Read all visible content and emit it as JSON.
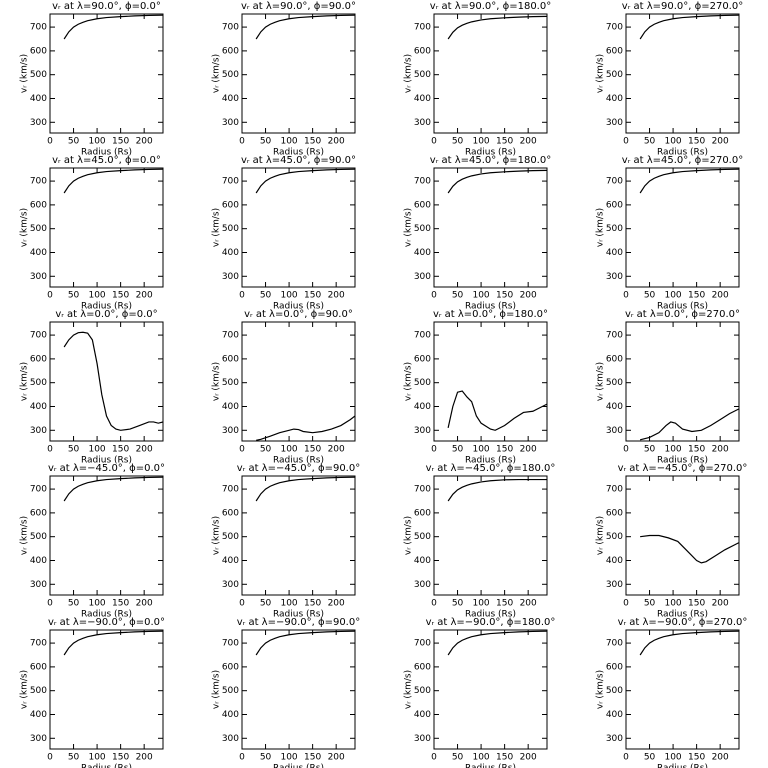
{
  "chart_data": [
    {
      "type": "line",
      "title": "vᵣ at λ=90.0°, ϕ=0.0°",
      "xlabel": "Radius (Rs)",
      "ylabel": "vᵣ (km/s)",
      "x": [
        30,
        40,
        50,
        60,
        70,
        80,
        100,
        120,
        150,
        180,
        210,
        240
      ],
      "series": [
        {
          "color": "#000000",
          "values": [
            650,
            680,
            700,
            712,
            720,
            727,
            735,
            740,
            744,
            747,
            749,
            750
          ]
        }
      ],
      "xlim": [
        0,
        240
      ],
      "ylim": [
        255,
        755
      ],
      "xticks": [
        0,
        50,
        100,
        150,
        200
      ],
      "yticks": [
        300,
        400,
        500,
        600,
        700
      ]
    },
    {
      "type": "line",
      "title": "vᵣ at λ=90.0°, ϕ=90.0°",
      "xlabel": "Radius (Rs)",
      "ylabel": "vᵣ (km/s)",
      "x": [
        30,
        40,
        50,
        60,
        70,
        80,
        100,
        120,
        150,
        180,
        210,
        240
      ],
      "series": [
        {
          "color": "#000000",
          "values": [
            650,
            680,
            700,
            712,
            720,
            727,
            735,
            740,
            744,
            747,
            749,
            750
          ]
        }
      ],
      "xlim": [
        0,
        240
      ],
      "ylim": [
        255,
        755
      ],
      "xticks": [
        0,
        50,
        100,
        150,
        200
      ],
      "yticks": [
        300,
        400,
        500,
        600,
        700
      ]
    },
    {
      "type": "line",
      "title": "vᵣ at λ=90.0°, ϕ=180.0°",
      "xlabel": "Radius (Rs)",
      "ylabel": "vᵣ (km/s)",
      "x": [
        30,
        40,
        50,
        60,
        70,
        80,
        100,
        120,
        150,
        180,
        210,
        240
      ],
      "series": [
        {
          "color": "#000000",
          "values": [
            650,
            678,
            697,
            708,
            716,
            722,
            730,
            735,
            739,
            742,
            744,
            745
          ]
        }
      ],
      "xlim": [
        0,
        240
      ],
      "ylim": [
        255,
        755
      ],
      "xticks": [
        0,
        50,
        100,
        150,
        200
      ],
      "yticks": [
        300,
        400,
        500,
        600,
        700
      ]
    },
    {
      "type": "line",
      "title": "vᵣ at λ=90.0°, ϕ=270.0°",
      "xlabel": "Radius (Rs)",
      "ylabel": "vᵣ (km/s)",
      "x": [
        30,
        40,
        50,
        60,
        70,
        80,
        100,
        120,
        150,
        180,
        210,
        240
      ],
      "series": [
        {
          "color": "#000000",
          "values": [
            650,
            680,
            700,
            712,
            720,
            727,
            735,
            740,
            744,
            747,
            749,
            750
          ]
        }
      ],
      "xlim": [
        0,
        240
      ],
      "ylim": [
        255,
        755
      ],
      "xticks": [
        0,
        50,
        100,
        150,
        200
      ],
      "yticks": [
        300,
        400,
        500,
        600,
        700
      ]
    },
    {
      "type": "line",
      "title": "vᵣ at λ=45.0°, ϕ=0.0°",
      "xlabel": "Radius (Rs)",
      "ylabel": "vᵣ (km/s)",
      "x": [
        30,
        40,
        50,
        60,
        70,
        80,
        100,
        120,
        150,
        180,
        210,
        240
      ],
      "series": [
        {
          "color": "#000000",
          "values": [
            650,
            680,
            700,
            712,
            720,
            727,
            735,
            740,
            744,
            747,
            749,
            750
          ]
        }
      ],
      "xlim": [
        0,
        240
      ],
      "ylim": [
        255,
        755
      ],
      "xticks": [
        0,
        50,
        100,
        150,
        200
      ],
      "yticks": [
        300,
        400,
        500,
        600,
        700
      ]
    },
    {
      "type": "line",
      "title": "vᵣ at λ=45.0°, ϕ=90.0°",
      "xlabel": "Radius (Rs)",
      "ylabel": "vᵣ (km/s)",
      "x": [
        30,
        40,
        50,
        60,
        70,
        80,
        100,
        120,
        150,
        180,
        210,
        240
      ],
      "series": [
        {
          "color": "#000000",
          "values": [
            650,
            680,
            700,
            712,
            720,
            727,
            735,
            740,
            744,
            747,
            749,
            750
          ]
        }
      ],
      "xlim": [
        0,
        240
      ],
      "ylim": [
        255,
        755
      ],
      "xticks": [
        0,
        50,
        100,
        150,
        200
      ],
      "yticks": [
        300,
        400,
        500,
        600,
        700
      ]
    },
    {
      "type": "line",
      "title": "vᵣ at λ=45.0°, ϕ=180.0°",
      "xlabel": "Radius (Rs)",
      "ylabel": "vᵣ (km/s)",
      "x": [
        30,
        40,
        50,
        60,
        70,
        80,
        100,
        120,
        150,
        180,
        210,
        240
      ],
      "series": [
        {
          "color": "#000000",
          "values": [
            650,
            678,
            697,
            708,
            716,
            722,
            730,
            735,
            739,
            742,
            744,
            745
          ]
        }
      ],
      "xlim": [
        0,
        240
      ],
      "ylim": [
        255,
        755
      ],
      "xticks": [
        0,
        50,
        100,
        150,
        200
      ],
      "yticks": [
        300,
        400,
        500,
        600,
        700
      ]
    },
    {
      "type": "line",
      "title": "vᵣ at λ=45.0°, ϕ=270.0°",
      "xlabel": "Radius (Rs)",
      "ylabel": "vᵣ (km/s)",
      "x": [
        30,
        40,
        50,
        60,
        70,
        80,
        100,
        120,
        150,
        180,
        210,
        240
      ],
      "series": [
        {
          "color": "#000000",
          "values": [
            650,
            680,
            700,
            712,
            720,
            727,
            735,
            740,
            744,
            747,
            749,
            750
          ]
        }
      ],
      "xlim": [
        0,
        240
      ],
      "ylim": [
        255,
        755
      ],
      "xticks": [
        0,
        50,
        100,
        150,
        200
      ],
      "yticks": [
        300,
        400,
        500,
        600,
        700
      ]
    },
    {
      "type": "line",
      "title": "vᵣ at λ=0.0°, ϕ=0.0°",
      "xlabel": "Radius (Rs)",
      "ylabel": "vᵣ (km/s)",
      "x": [
        30,
        40,
        50,
        60,
        70,
        80,
        90,
        100,
        110,
        120,
        130,
        140,
        150,
        170,
        190,
        210,
        220,
        230,
        240
      ],
      "series": [
        {
          "color": "#000000",
          "values": [
            650,
            680,
            700,
            710,
            712,
            708,
            680,
            580,
            450,
            360,
            320,
            305,
            300,
            305,
            320,
            335,
            335,
            330,
            335
          ]
        }
      ],
      "xlim": [
        0,
        240
      ],
      "ylim": [
        255,
        755
      ],
      "xticks": [
        0,
        50,
        100,
        150,
        200
      ],
      "yticks": [
        300,
        400,
        500,
        600,
        700
      ]
    },
    {
      "type": "line",
      "title": "vᵣ at λ=0.0°, ϕ=90.0°",
      "xlabel": "Radius (Rs)",
      "ylabel": "vᵣ (km/s)",
      "x": [
        30,
        40,
        60,
        80,
        100,
        110,
        120,
        130,
        150,
        170,
        190,
        210,
        230,
        240
      ],
      "series": [
        {
          "color": "#000000",
          "values": [
            258,
            262,
            275,
            290,
            300,
            305,
            303,
            295,
            290,
            295,
            305,
            320,
            345,
            360
          ]
        }
      ],
      "xlim": [
        0,
        240
      ],
      "ylim": [
        255,
        755
      ],
      "xticks": [
        0,
        50,
        100,
        150,
        200
      ],
      "yticks": [
        300,
        400,
        500,
        600,
        700
      ]
    },
    {
      "type": "line",
      "title": "vᵣ at λ=0.0°, ϕ=180.0°",
      "xlabel": "Radius (Rs)",
      "ylabel": "vᵣ (km/s)",
      "x": [
        30,
        40,
        50,
        60,
        70,
        80,
        90,
        100,
        120,
        130,
        150,
        170,
        190,
        210,
        230,
        240
      ],
      "series": [
        {
          "color": "#000000",
          "values": [
            310,
            400,
            460,
            465,
            440,
            420,
            360,
            330,
            305,
            300,
            320,
            350,
            375,
            380,
            400,
            410
          ]
        }
      ],
      "xlim": [
        0,
        240
      ],
      "ylim": [
        255,
        755
      ],
      "xticks": [
        0,
        50,
        100,
        150,
        200
      ],
      "yticks": [
        300,
        400,
        500,
        600,
        700
      ]
    },
    {
      "type": "line",
      "title": "vᵣ at λ=0.0°, ϕ=270.0°",
      "xlabel": "Radius (Rs)",
      "ylabel": "vᵣ (km/s)",
      "x": [
        30,
        50,
        70,
        85,
        95,
        105,
        120,
        140,
        160,
        180,
        200,
        220,
        240
      ],
      "series": [
        {
          "color": "#000000",
          "values": [
            260,
            270,
            290,
            320,
            335,
            330,
            305,
            295,
            300,
            320,
            345,
            370,
            390
          ]
        }
      ],
      "xlim": [
        0,
        240
      ],
      "ylim": [
        255,
        755
      ],
      "xticks": [
        0,
        50,
        100,
        150,
        200
      ],
      "yticks": [
        300,
        400,
        500,
        600,
        700
      ]
    },
    {
      "type": "line",
      "title": "vᵣ at λ=−45.0°, ϕ=0.0°",
      "xlabel": "Radius (Rs)",
      "ylabel": "vᵣ (km/s)",
      "x": [
        30,
        40,
        50,
        60,
        70,
        80,
        100,
        120,
        150,
        180,
        210,
        240
      ],
      "series": [
        {
          "color": "#000000",
          "values": [
            650,
            680,
            700,
            712,
            720,
            727,
            735,
            740,
            744,
            747,
            749,
            750
          ]
        }
      ],
      "xlim": [
        0,
        240
      ],
      "ylim": [
        255,
        755
      ],
      "xticks": [
        0,
        50,
        100,
        150,
        200
      ],
      "yticks": [
        300,
        400,
        500,
        600,
        700
      ]
    },
    {
      "type": "line",
      "title": "vᵣ at λ=−45.0°, ϕ=90.0°",
      "xlabel": "Radius (Rs)",
      "ylabel": "vᵣ (km/s)",
      "x": [
        30,
        40,
        50,
        60,
        70,
        80,
        100,
        120,
        150,
        180,
        210,
        240
      ],
      "series": [
        {
          "color": "#000000",
          "values": [
            650,
            680,
            700,
            712,
            720,
            727,
            735,
            740,
            744,
            747,
            749,
            750
          ]
        }
      ],
      "xlim": [
        0,
        240
      ],
      "ylim": [
        255,
        755
      ],
      "xticks": [
        0,
        50,
        100,
        150,
        200
      ],
      "yticks": [
        300,
        400,
        500,
        600,
        700
      ]
    },
    {
      "type": "line",
      "title": "vᵣ at λ=−45.0°, ϕ=180.0°",
      "xlabel": "Radius (Rs)",
      "ylabel": "vᵣ (km/s)",
      "x": [
        30,
        40,
        50,
        60,
        70,
        80,
        100,
        120,
        150,
        180,
        210,
        240
      ],
      "series": [
        {
          "color": "#000000",
          "values": [
            650,
            678,
            697,
            708,
            716,
            722,
            730,
            735,
            739,
            740,
            740,
            740
          ]
        }
      ],
      "xlim": [
        0,
        240
      ],
      "ylim": [
        255,
        755
      ],
      "xticks": [
        0,
        50,
        100,
        150,
        200
      ],
      "yticks": [
        300,
        400,
        500,
        600,
        700
      ]
    },
    {
      "type": "line",
      "title": "vᵣ at λ=−45.0°, ϕ=270.0°",
      "xlabel": "Radius (Rs)",
      "ylabel": "vᵣ (km/s)",
      "x": [
        30,
        50,
        70,
        90,
        110,
        130,
        150,
        160,
        170,
        190,
        210,
        240
      ],
      "series": [
        {
          "color": "#000000",
          "values": [
            500,
            505,
            505,
            495,
            480,
            440,
            400,
            390,
            395,
            420,
            445,
            475
          ]
        }
      ],
      "xlim": [
        0,
        240
      ],
      "ylim": [
        255,
        755
      ],
      "xticks": [
        0,
        50,
        100,
        150,
        200
      ],
      "yticks": [
        300,
        400,
        500,
        600,
        700
      ]
    },
    {
      "type": "line",
      "title": "vᵣ at λ=−90.0°, ϕ=0.0°",
      "xlabel": "Radius (Rs)",
      "ylabel": "vᵣ (km/s)",
      "x": [
        30,
        40,
        50,
        60,
        70,
        80,
        100,
        120,
        150,
        180,
        210,
        240
      ],
      "series": [
        {
          "color": "#000000",
          "values": [
            650,
            680,
            700,
            712,
            720,
            727,
            735,
            740,
            744,
            747,
            749,
            750
          ]
        }
      ],
      "xlim": [
        0,
        240
      ],
      "ylim": [
        255,
        755
      ],
      "xticks": [
        0,
        50,
        100,
        150,
        200
      ],
      "yticks": [
        300,
        400,
        500,
        600,
        700
      ]
    },
    {
      "type": "line",
      "title": "vᵣ at λ=−90.0°, ϕ=90.0°",
      "xlabel": "Radius (Rs)",
      "ylabel": "vᵣ (km/s)",
      "x": [
        30,
        40,
        50,
        60,
        70,
        80,
        100,
        120,
        150,
        180,
        210,
        240
      ],
      "series": [
        {
          "color": "#000000",
          "values": [
            650,
            680,
            700,
            712,
            720,
            727,
            735,
            740,
            744,
            747,
            749,
            750
          ]
        }
      ],
      "xlim": [
        0,
        240
      ],
      "ylim": [
        255,
        755
      ],
      "xticks": [
        0,
        50,
        100,
        150,
        200
      ],
      "yticks": [
        300,
        400,
        500,
        600,
        700
      ]
    },
    {
      "type": "line",
      "title": "vᵣ at λ=−90.0°, ϕ=180.0°",
      "xlabel": "Radius (Rs)",
      "ylabel": "vᵣ (km/s)",
      "x": [
        30,
        40,
        50,
        60,
        70,
        80,
        100,
        120,
        150,
        180,
        210,
        240
      ],
      "series": [
        {
          "color": "#000000",
          "values": [
            650,
            680,
            700,
            712,
            720,
            727,
            735,
            740,
            744,
            747,
            749,
            750
          ]
        }
      ],
      "xlim": [
        0,
        240
      ],
      "ylim": [
        255,
        755
      ],
      "xticks": [
        0,
        50,
        100,
        150,
        200
      ],
      "yticks": [
        300,
        400,
        500,
        600,
        700
      ]
    },
    {
      "type": "line",
      "title": "vᵣ at λ=−90.0°, ϕ=270.0°",
      "xlabel": "Radius (Rs)",
      "ylabel": "vᵣ (km/s)",
      "x": [
        30,
        40,
        50,
        60,
        70,
        80,
        100,
        120,
        150,
        180,
        210,
        240
      ],
      "series": [
        {
          "color": "#000000",
          "values": [
            650,
            680,
            700,
            712,
            720,
            727,
            735,
            740,
            744,
            747,
            749,
            750
          ]
        }
      ],
      "xlim": [
        0,
        240
      ],
      "ylim": [
        255,
        755
      ],
      "xticks": [
        0,
        50,
        100,
        150,
        200
      ],
      "yticks": [
        300,
        400,
        500,
        600,
        700
      ]
    }
  ]
}
